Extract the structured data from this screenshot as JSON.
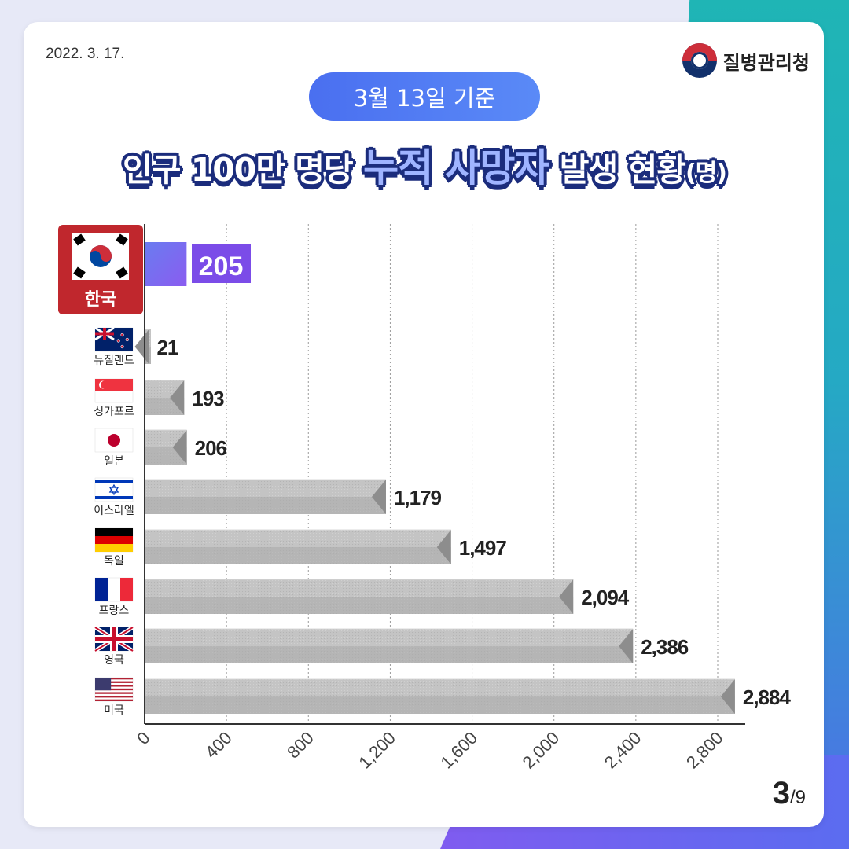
{
  "date": "2022. 3. 17.",
  "agency": "질병관리청",
  "badge": "3월 13일 기준",
  "title": {
    "part1": "인구 100만 명당 ",
    "highlight": "누적 사망자",
    "part2": " 발생 현황",
    "unit": "(명)"
  },
  "page": {
    "current": "3",
    "total": "/9"
  },
  "colors": {
    "korea_bar": "#7b5cf0",
    "bar": "#bdbdbd",
    "korea_label_bg": "#c0272d"
  },
  "chart_data": {
    "type": "bar",
    "orientation": "horizontal",
    "categories": [
      "한국",
      "뉴질랜드",
      "싱가포르",
      "일본",
      "이스라엘",
      "독일",
      "프랑스",
      "영국",
      "미국"
    ],
    "values": [
      205,
      21,
      193,
      206,
      1179,
      1497,
      2094,
      2386,
      2884
    ],
    "value_labels": [
      "205",
      "21",
      "193",
      "206",
      "1,179",
      "1,497",
      "2,094",
      "2,386",
      "2,884"
    ],
    "flags": [
      "korea-flag-icon",
      "new-zealand-flag-icon",
      "singapore-flag-icon",
      "japan-flag-icon",
      "israel-flag-icon",
      "germany-flag-icon",
      "france-flag-icon",
      "uk-flag-icon",
      "usa-flag-icon"
    ],
    "xticks": [
      "0",
      "400",
      "800",
      "1,200",
      "1,600",
      "2,000",
      "2,400",
      "2,800"
    ],
    "xlim": [
      0,
      2800
    ],
    "grid": true,
    "highlight_category": "한국"
  }
}
